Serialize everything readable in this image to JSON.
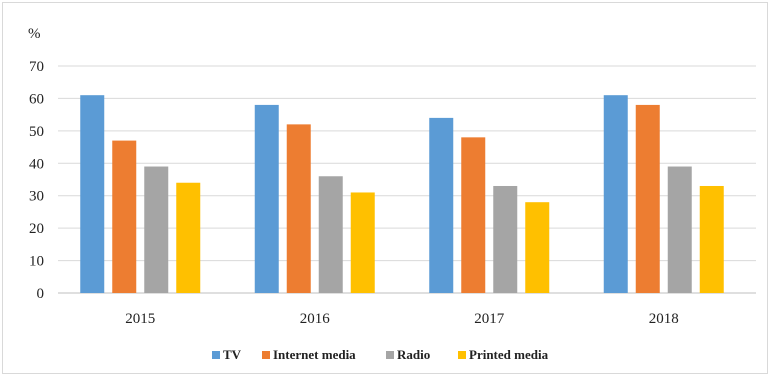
{
  "chart_data": {
    "type": "bar",
    "unit_label": "%",
    "categories": [
      "2015",
      "2016",
      "2017",
      "2018"
    ],
    "series": [
      {
        "name": "TV",
        "color": "#5b9bd5",
        "values": [
          61,
          58,
          54,
          61
        ]
      },
      {
        "name": "Internet media",
        "color": "#ed7d31",
        "values": [
          47,
          52,
          48,
          58
        ]
      },
      {
        "name": "Radio",
        "color": "#a5a5a5",
        "values": [
          39,
          36,
          33,
          39
        ]
      },
      {
        "name": "Printed media",
        "color": "#ffc000",
        "values": [
          34,
          31,
          28,
          33
        ]
      }
    ],
    "ylim": [
      0,
      70
    ],
    "yticks": [
      0,
      10,
      20,
      30,
      40,
      50,
      60,
      70
    ],
    "grid": true,
    "legend_position": "bottom"
  }
}
